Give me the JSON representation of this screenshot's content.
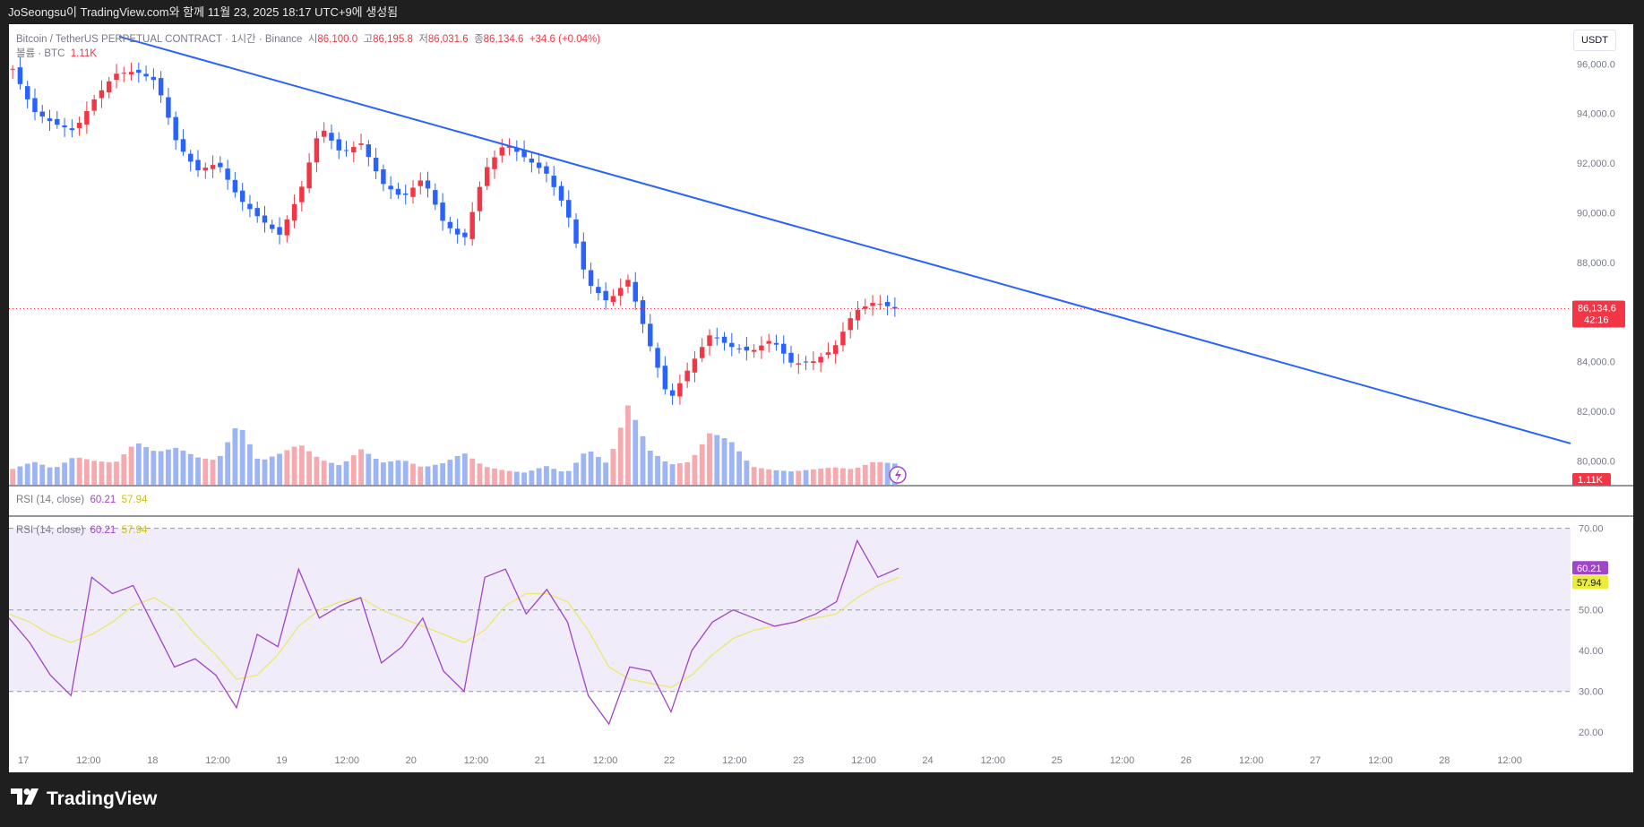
{
  "header": {
    "attribution": "JoSeongsu이 TradingView.com와 함께 11월 23, 2025 18:17 UTC+9에 생성됨"
  },
  "chart_header": {
    "symbol": "Bitcoin / TetherUS PERPETUAL CONTRACT · 1시간 · Binance",
    "open_label": "시",
    "open": "86,100.0",
    "high_label": "고",
    "high": "86,195.8",
    "low_label": "저",
    "low": "86,031.6",
    "close_label": "종",
    "close": "86,134.6",
    "change": "+34.6 (+0.04%)",
    "volume_label": "볼륨 · BTC",
    "volume": "1.11K"
  },
  "currency_button": "USDT",
  "price_label": {
    "value": "86,134.6",
    "countdown": "42:16"
  },
  "volume_label_badge": "1.11K",
  "rsi_legend": {
    "name": "RSI (14, close)",
    "rsi": "60.21",
    "ma": "57.94"
  },
  "rsi_badges": {
    "rsi": "60.21",
    "ma": "57.94"
  },
  "footer": {
    "brand": "TradingView"
  },
  "colors": {
    "up": "#f23645",
    "down": "#2962ff",
    "trendline": "#2962ff",
    "rsi": "#a044c8",
    "rsi_ma": "#e9e96a",
    "rsi_band": "#f1ecfa"
  },
  "chart_data": [
    {
      "type": "candlestick",
      "title": "Bitcoin / TetherUS PERPETUAL CONTRACT · 1시간 · Binance",
      "ylim": [
        79000,
        97600
      ],
      "y_ticks": [
        "96,000.0",
        "94,000.0",
        "92,000.0",
        "90,000.0",
        "88,000.0",
        "86,000.0",
        "84,000.0",
        "82,000.0",
        "80,000.0"
      ],
      "y_tick_values": [
        96000,
        94000,
        92000,
        90000,
        88000,
        86000,
        84000,
        82000,
        80000
      ],
      "x_ticks": [
        "17",
        "12:00",
        "18",
        "12:00",
        "19",
        "12:00",
        "20",
        "12:00",
        "21",
        "12:00",
        "22",
        "12:00",
        "23",
        "12:00",
        "24",
        "12:00",
        "25",
        "12:00",
        "26",
        "12:00",
        "27",
        "12:00",
        "28",
        "12:00"
      ],
      "last_close": 86134.6,
      "trendline": {
        "from": {
          "x": "11/17 06:00",
          "y": 97100
        },
        "to": {
          "x": "11/28 22:00",
          "y": 80700
        }
      },
      "price_path": [
        95800,
        94100,
        93600,
        93300,
        94600,
        95600,
        95700,
        95300,
        92800,
        91700,
        92000,
        90600,
        89800,
        89100,
        90800,
        93500,
        92400,
        92800,
        91200,
        90600,
        91400,
        89600,
        88900,
        91700,
        92800,
        92200,
        91600,
        90100,
        87200,
        86400,
        87300,
        84800,
        82400,
        83800,
        85100,
        84600,
        84400,
        84900,
        83900,
        84000,
        84500,
        86000,
        86400,
        86134.6
      ],
      "volume_path": [
        1.4,
        1.9,
        1.2,
        2.0,
        1.6,
        1.4,
        2.6,
        1.9,
        2.1,
        1.5,
        1.3,
        3.3,
        1.2,
        1.6,
        2.1,
        1.3,
        1.0,
        1.9,
        1.2,
        1.4,
        1.0,
        1.3,
        2.0,
        1.2,
        1.0,
        0.9,
        1.5,
        1.0,
        3.0,
        1.6,
        5.8,
        2.4,
        1.3,
        1.4,
        3.1,
        2.5,
        1.0,
        0.8,
        0.7,
        0.8,
        0.9,
        0.8,
        1.2,
        1.11
      ]
    },
    {
      "type": "line",
      "title": "RSI (14, close)",
      "ylim": [
        15,
        73
      ],
      "y_ticks": [
        "70.00",
        "50.00",
        "40.00",
        "30.00",
        "20.00"
      ],
      "y_tick_values": [
        70,
        50,
        40,
        30,
        20
      ],
      "bands": {
        "upper": 70,
        "middle": 50,
        "lower": 30
      },
      "series": [
        {
          "name": "RSI",
          "values": [
            48,
            42,
            34,
            29,
            58,
            54,
            56,
            46,
            36,
            38,
            34,
            26,
            44,
            41,
            60,
            48,
            51,
            53,
            37,
            41,
            48,
            35,
            30,
            58,
            60,
            49,
            55,
            47,
            29,
            22,
            36,
            35,
            25,
            40,
            47,
            50,
            48,
            46,
            47,
            49,
            52,
            67,
            58,
            60.21
          ]
        },
        {
          "name": "MA",
          "values": [
            49,
            47,
            44,
            42,
            44,
            47,
            51,
            53,
            50,
            44,
            39,
            33,
            34,
            39,
            46,
            50,
            52,
            53,
            50,
            48,
            46,
            44,
            42,
            45,
            51,
            54,
            54,
            52,
            45,
            36,
            33,
            32,
            31,
            34,
            39,
            43,
            45,
            46,
            47,
            48,
            49,
            53,
            56,
            57.94
          ]
        }
      ]
    }
  ]
}
